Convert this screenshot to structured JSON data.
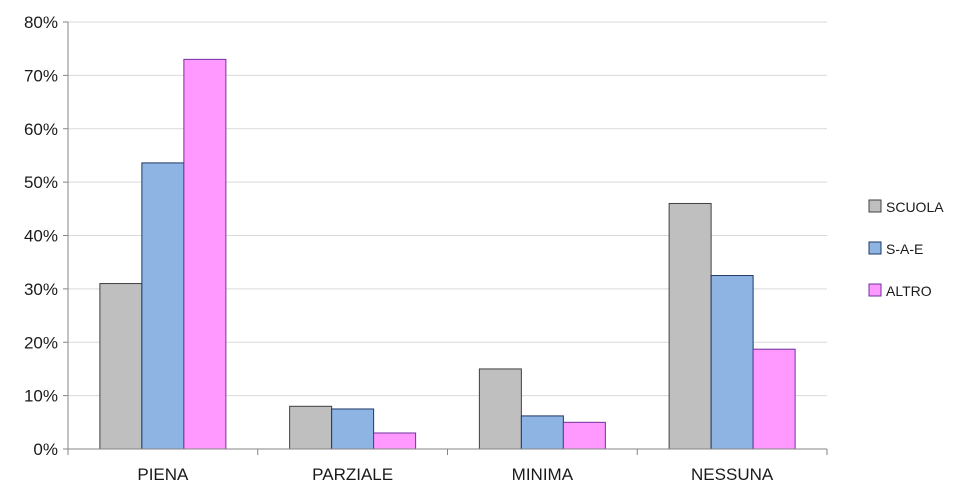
{
  "chart_data": {
    "type": "bar",
    "categories": [
      "PIENA",
      "PARZIALE",
      "MINIMA",
      "NESSUNA"
    ],
    "series": [
      {
        "name": "SCUOLA",
        "values": [
          31,
          8,
          15,
          46
        ],
        "color": "#bfbfbf"
      },
      {
        "name": "S-A-E",
        "values": [
          53.6,
          7.5,
          6.2,
          32.5
        ],
        "color": "#8db4e2"
      },
      {
        "name": "ALTRO",
        "values": [
          73,
          3,
          5,
          18.7
        ],
        "color": "#ff99ff"
      }
    ],
    "ylim": [
      0,
      80
    ],
    "yticks": [
      0,
      10,
      20,
      30,
      40,
      50,
      60,
      70,
      80
    ],
    "ytick_labels": [
      "0%",
      "10%",
      "20%",
      "30%",
      "40%",
      "50%",
      "60%",
      "70%",
      "80%"
    ],
    "grid": true,
    "legend_position": "right",
    "title": "",
    "xlabel": "",
    "ylabel": "",
    "gridline_color": "#d9d9d9",
    "axis_color": "#868686",
    "bar_edge_colors": [
      "#404040",
      "#1f3864",
      "#7030a0"
    ]
  }
}
